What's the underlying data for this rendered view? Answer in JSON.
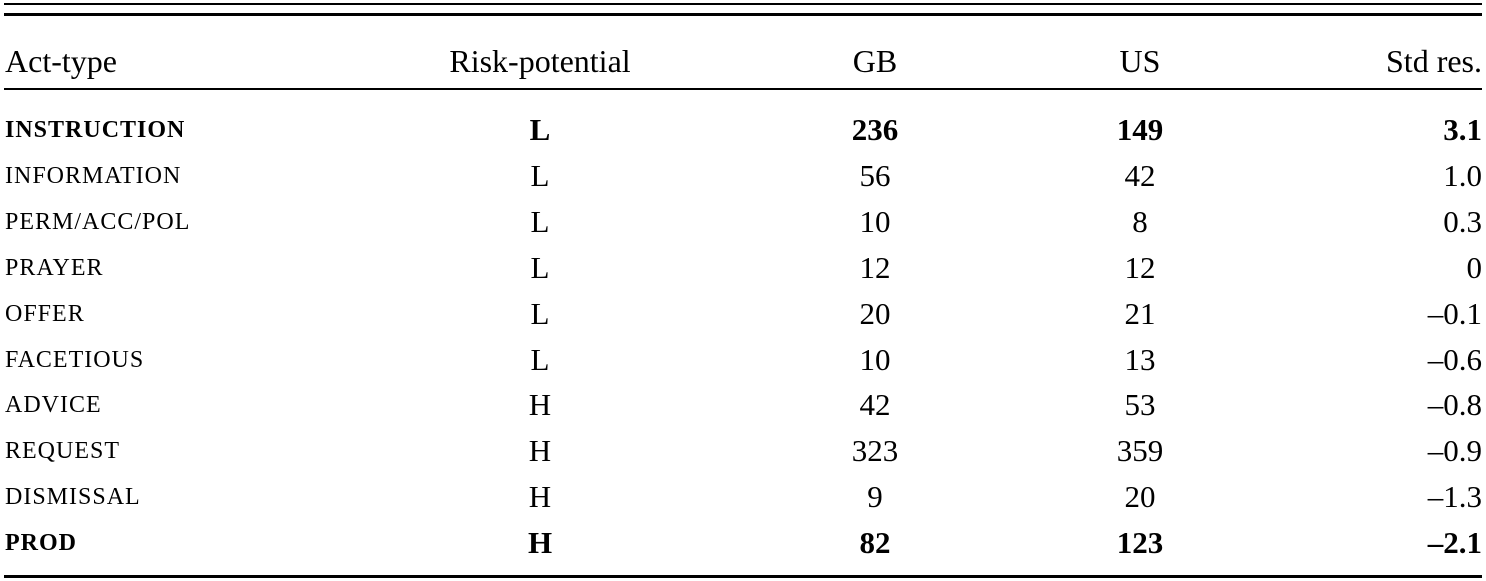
{
  "table": {
    "headers": [
      "Act-type",
      "Risk-potential",
      "GB",
      "US",
      "Std res."
    ],
    "rows": [
      {
        "act": "INSTRUCTION",
        "risk": "L",
        "gb": "236",
        "us": "149",
        "std": "3.1",
        "bold": true
      },
      {
        "act": "INFORMATION",
        "risk": "L",
        "gb": "56",
        "us": "42",
        "std": "1.0",
        "bold": false
      },
      {
        "act": "PERM/ACC/POL",
        "risk": "L",
        "gb": "10",
        "us": "8",
        "std": "0.3",
        "bold": false
      },
      {
        "act": "PRAYER",
        "risk": "L",
        "gb": "12",
        "us": "12",
        "std": "0",
        "bold": false
      },
      {
        "act": "OFFER",
        "risk": "L",
        "gb": "20",
        "us": "21",
        "std": "–0.1",
        "bold": false
      },
      {
        "act": "FACETIOUS",
        "risk": "L",
        "gb": "10",
        "us": "13",
        "std": "–0.6",
        "bold": false
      },
      {
        "act": "ADVICE",
        "risk": "H",
        "gb": "42",
        "us": "53",
        "std": "–0.8",
        "bold": false
      },
      {
        "act": "REQUEST",
        "risk": "H",
        "gb": "323",
        "us": "359",
        "std": "–0.9",
        "bold": false
      },
      {
        "act": "DISMISSAL",
        "risk": "H",
        "gb": "9",
        "us": "20",
        "std": "–1.3",
        "bold": false
      },
      {
        "act": "PROD",
        "risk": "H",
        "gb": "82",
        "us": "123",
        "std": "–2.1",
        "bold": true
      }
    ]
  }
}
